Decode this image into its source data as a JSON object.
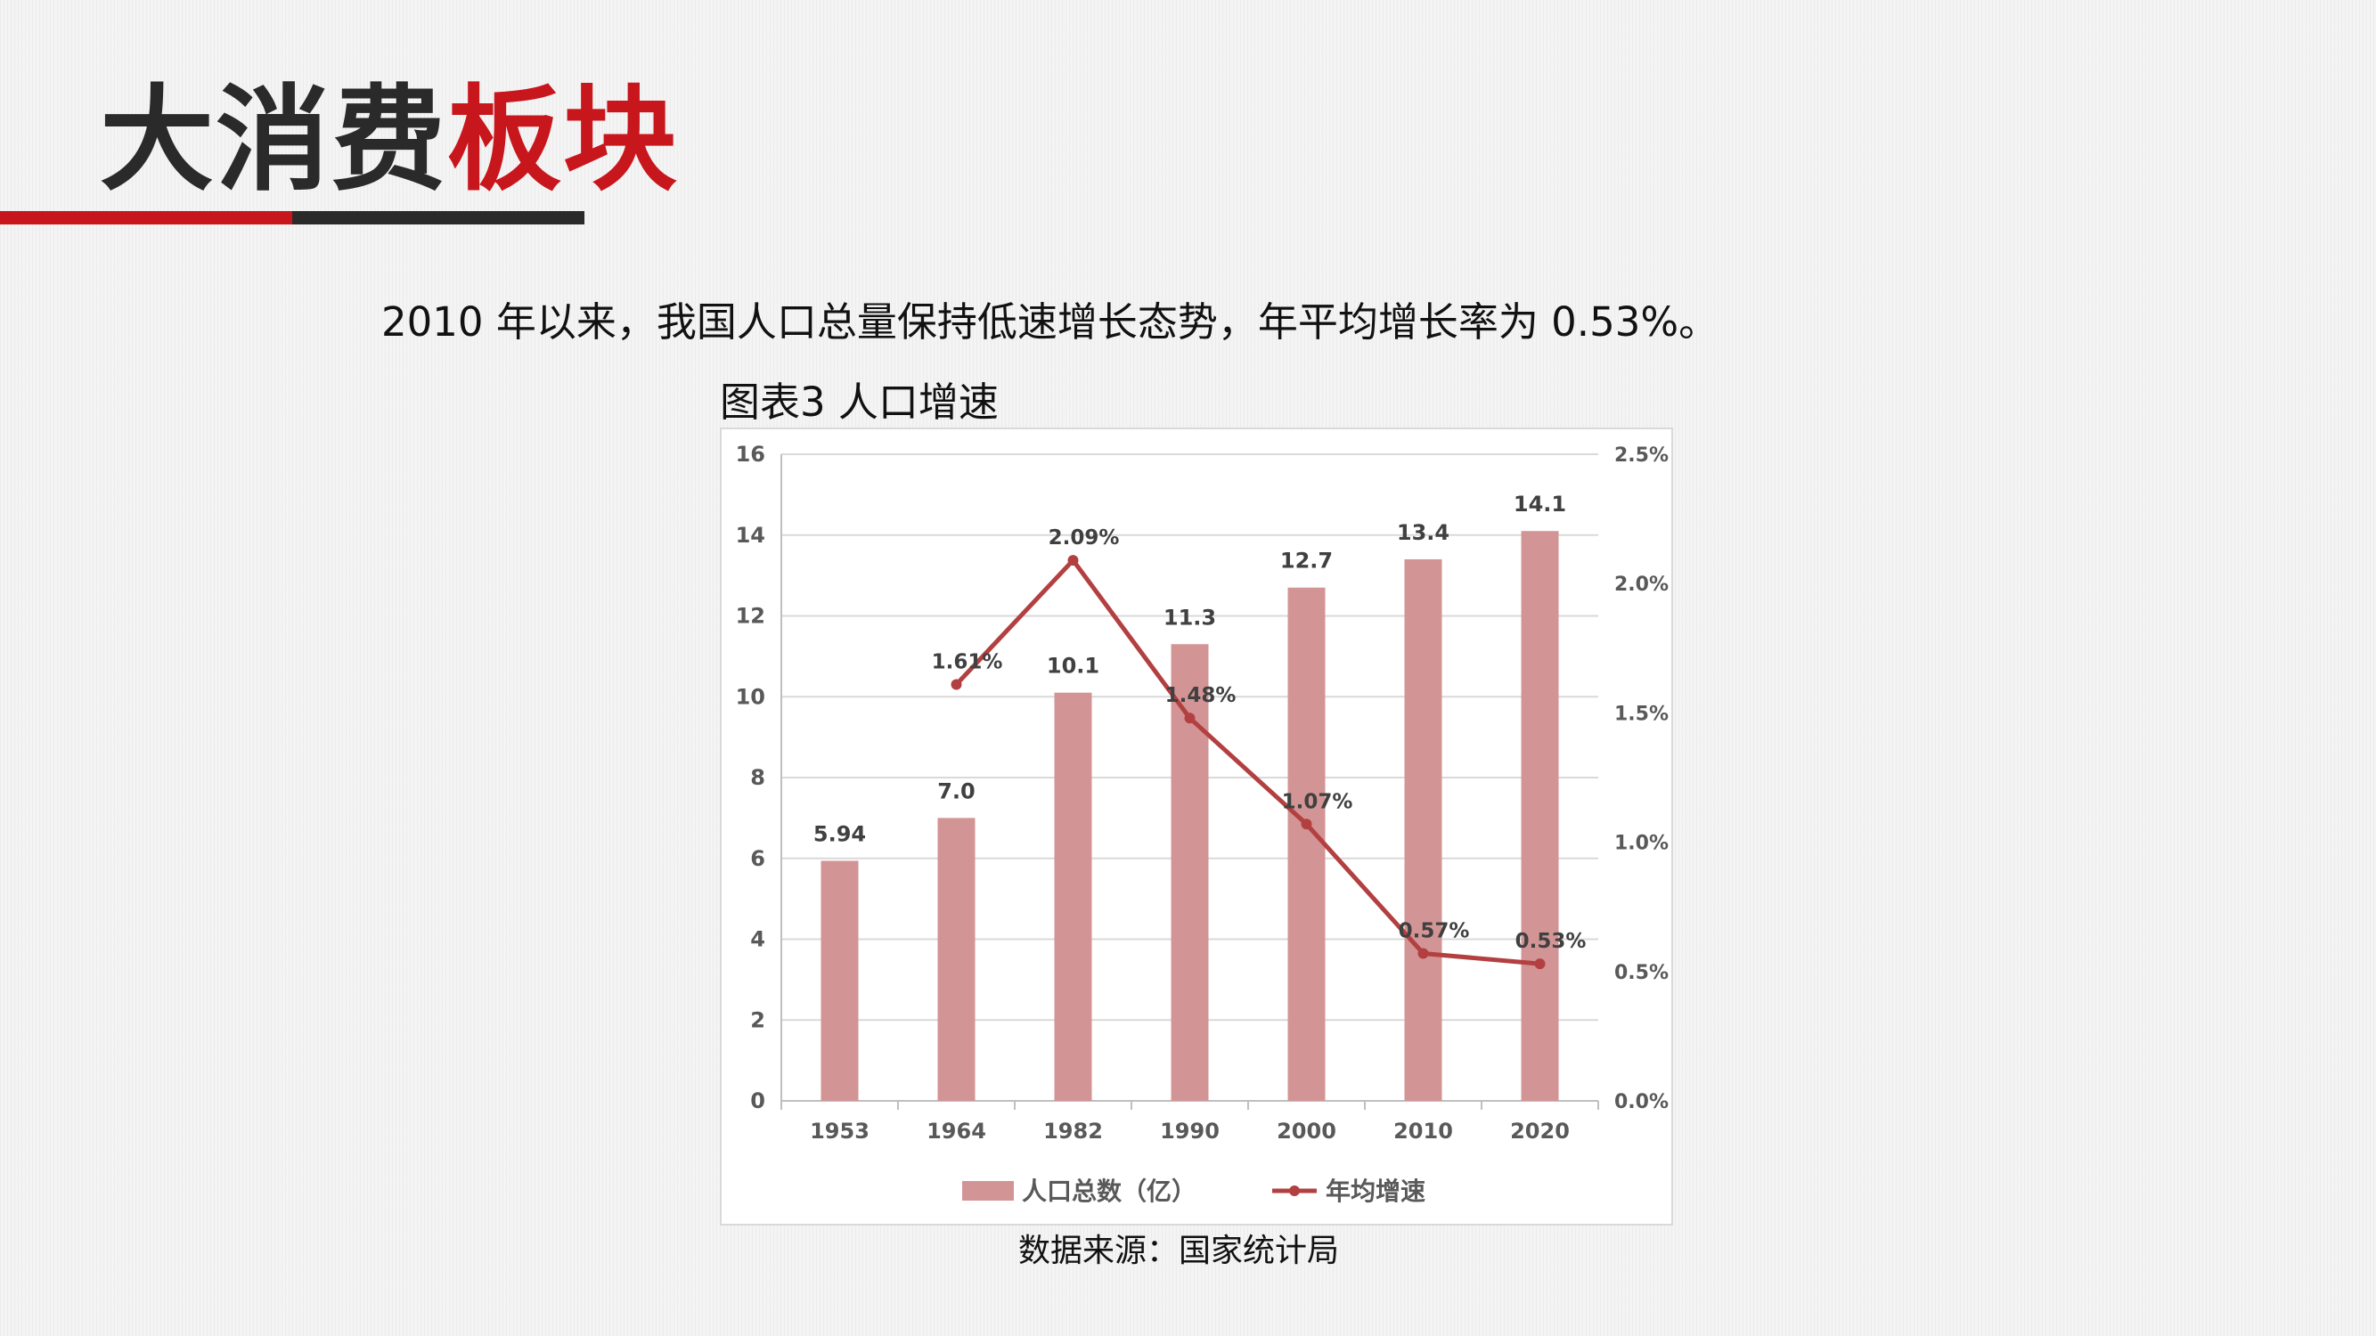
{
  "page": {
    "title_dark": "大消费",
    "title_red": "板块",
    "subtitle": "2010 年以来，我国人口总量保持低速增长态势，年平均增长率为 0.53%。",
    "figure_caption": "图表3 人口增速",
    "source": "数据来源：国家统计局"
  },
  "colors": {
    "accent_red": "#c8161d",
    "dark": "#2a2a2a",
    "bar_fill": "#d39495",
    "line_color": "#b34041"
  },
  "chart_data": {
    "type": "bar",
    "title": "",
    "categories": [
      "1953",
      "1964",
      "1982",
      "1990",
      "2000",
      "2010",
      "2020"
    ],
    "ylim": [
      0,
      16
    ],
    "y_ticks": [
      "0",
      "2",
      "4",
      "6",
      "8",
      "10",
      "12",
      "14",
      "16"
    ],
    "y2lim": [
      0,
      2.5
    ],
    "y2_ticks": [
      "0.0%",
      "0.5%",
      "1.0%",
      "1.5%",
      "2.0%",
      "2.5%"
    ],
    "grid": true,
    "legend_position": "bottom",
    "series": [
      {
        "name": "人口总数（亿）",
        "type": "bar",
        "axis": "left",
        "values": [
          5.94,
          7.0,
          10.1,
          11.3,
          12.7,
          13.4,
          14.1
        ],
        "labels": [
          "5.94",
          "7.0",
          "10.1",
          "11.3",
          "12.7",
          "13.4",
          "14.1"
        ]
      },
      {
        "name": "年均增速",
        "type": "line",
        "axis": "right",
        "values": [
          null,
          1.61,
          2.09,
          1.48,
          1.07,
          0.57,
          0.53
        ],
        "labels": [
          "",
          "1.61%",
          "2.09%",
          "1.48%",
          "1.07%",
          "0.57%",
          "0.53%"
        ]
      }
    ]
  }
}
